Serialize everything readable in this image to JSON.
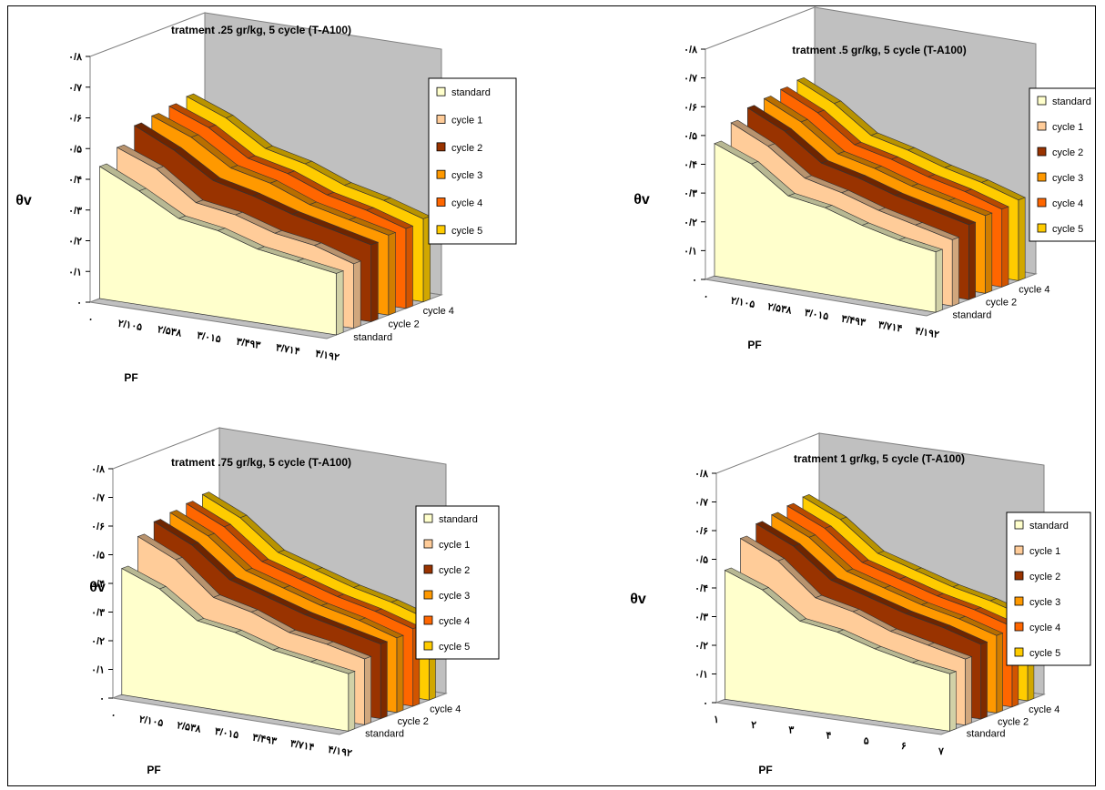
{
  "colors": {
    "standard": "#FFFFCC",
    "cycle 1": "#FFCC99",
    "cycle 2": "#993300",
    "cycle 3": "#FF9900",
    "cycle 4": "#FF6600",
    "cycle 5": "#FFCC00",
    "wall": "#C0C0C0"
  },
  "chart_data": [
    {
      "type": "area",
      "subtype": "3d-area",
      "title": "tratment .25 gr/kg, 5 cycle (T-A100)",
      "ylabel": "θv",
      "xlabel": "PF",
      "y_ticks": [
        "۰",
        "۰/۱",
        "۰/۲",
        "۰/۳",
        "۰/۴",
        "۰/۵",
        "۰/۶",
        "۰/۷",
        "۰/۸"
      ],
      "ylim": [
        0,
        0.8
      ],
      "categories": [
        "۰",
        "۲/۱۰۵",
        "۲/۵۳۸",
        "۳/۰۱۵",
        "۳/۴۹۳",
        "۳/۷۱۴",
        "۴/۱۹۲"
      ],
      "depth_labels": [
        "standard",
        "cycle 2",
        "cycle 4"
      ],
      "legend": [
        "standard",
        "cycle 1",
        "cycle 2",
        "cycle 3",
        "cycle 4",
        "cycle 5"
      ],
      "legend_position": "right",
      "series": [
        {
          "name": "standard",
          "values": [
            0.43,
            0.37,
            0.3,
            0.28,
            0.24,
            0.22,
            0.2
          ]
        },
        {
          "name": "cycle 1",
          "values": [
            0.47,
            0.42,
            0.33,
            0.31,
            0.27,
            0.25,
            0.21
          ]
        },
        {
          "name": "cycle 2",
          "values": [
            0.52,
            0.46,
            0.38,
            0.35,
            0.31,
            0.28,
            0.25
          ]
        },
        {
          "name": "cycle 3",
          "values": [
            0.53,
            0.48,
            0.4,
            0.37,
            0.32,
            0.29,
            0.26
          ]
        },
        {
          "name": "cycle 4",
          "values": [
            0.54,
            0.49,
            0.41,
            0.38,
            0.33,
            0.3,
            0.26
          ]
        },
        {
          "name": "cycle 5",
          "values": [
            0.55,
            0.5,
            0.42,
            0.39,
            0.34,
            0.31,
            0.27
          ]
        }
      ]
    },
    {
      "type": "area",
      "subtype": "3d-area",
      "title": "tratment .5 gr/kg, 5 cycle (T-A100)",
      "ylabel": "θv",
      "xlabel": "PF",
      "y_ticks": [
        "۰",
        "۰/۱",
        "۰/۲",
        "۰/۳",
        "۰/۴",
        "۰/۵",
        "۰/۶",
        "۰/۷",
        "۰/۸"
      ],
      "ylim": [
        0,
        0.8
      ],
      "categories": [
        "۰",
        "۲/۱۰۵",
        "۲/۵۳۸",
        "۳/۰۱۵",
        "۳/۴۹۳",
        "۳/۷۱۴",
        "۴/۱۹۲"
      ],
      "depth_labels": [
        "standard",
        "cycle 2",
        "cycle 4"
      ],
      "legend": [
        "standard",
        "cycle 1",
        "cycle 2",
        "cycle 3",
        "cycle 4",
        "cycle 5"
      ],
      "legend_position": "right",
      "series": [
        {
          "name": "standard",
          "values": [
            0.46,
            0.41,
            0.32,
            0.3,
            0.26,
            0.23,
            0.21
          ]
        },
        {
          "name": "cycle 1",
          "values": [
            0.51,
            0.45,
            0.36,
            0.33,
            0.29,
            0.26,
            0.23
          ]
        },
        {
          "name": "cycle 2",
          "values": [
            0.54,
            0.48,
            0.39,
            0.36,
            0.32,
            0.29,
            0.26
          ]
        },
        {
          "name": "cycle 3",
          "values": [
            0.55,
            0.49,
            0.4,
            0.37,
            0.33,
            0.3,
            0.27
          ]
        },
        {
          "name": "cycle 4",
          "values": [
            0.56,
            0.5,
            0.41,
            0.38,
            0.34,
            0.31,
            0.27
          ]
        },
        {
          "name": "cycle 5",
          "values": [
            0.57,
            0.51,
            0.42,
            0.39,
            0.35,
            0.32,
            0.28
          ]
        }
      ]
    },
    {
      "type": "area",
      "subtype": "3d-area",
      "title": "tratment .75 gr/kg, 5 cycle (T-A100)",
      "ylabel": "θv",
      "xlabel": "PF",
      "y_ticks": [
        "۰",
        "۰/۱",
        "۰/۲",
        "۰/۳",
        "۰/۴",
        "۰/۵",
        "۰/۶",
        "۰/۷",
        "۰/۸"
      ],
      "ylim": [
        0,
        0.8
      ],
      "categories": [
        "۰",
        "۲/۱۰۵",
        "۲/۵۳۸",
        "۳/۰۱۵",
        "۳/۴۹۳",
        "۳/۷۱۴",
        "۴/۱۹۲"
      ],
      "depth_labels": [
        "standard",
        "cycle 2",
        "cycle 4"
      ],
      "legend": [
        "standard",
        "cycle 1",
        "cycle 2",
        "cycle 3",
        "cycle 4",
        "cycle 5"
      ],
      "legend_position": "right",
      "series": [
        {
          "name": "standard",
          "values": [
            0.44,
            0.39,
            0.3,
            0.28,
            0.24,
            0.22,
            0.2
          ]
        },
        {
          "name": "cycle 1",
          "values": [
            0.53,
            0.47,
            0.36,
            0.33,
            0.28,
            0.26,
            0.23
          ]
        },
        {
          "name": "cycle 2",
          "values": [
            0.56,
            0.5,
            0.4,
            0.36,
            0.32,
            0.29,
            0.26
          ]
        },
        {
          "name": "cycle 3",
          "values": [
            0.57,
            0.51,
            0.41,
            0.37,
            0.33,
            0.3,
            0.26
          ]
        },
        {
          "name": "cycle 4",
          "values": [
            0.58,
            0.52,
            0.42,
            0.38,
            0.34,
            0.31,
            0.27
          ]
        },
        {
          "name": "cycle 5",
          "values": [
            0.59,
            0.53,
            0.43,
            0.39,
            0.35,
            0.32,
            0.28
          ]
        }
      ]
    },
    {
      "type": "area",
      "subtype": "3d-area",
      "title": "tratment 1 gr/kg, 5 cycle (T-A100)",
      "ylabel": "θv",
      "xlabel": "PF",
      "y_ticks": [
        "۰",
        "۰/۱",
        "۰/۲",
        "۰/۳",
        "۰/۴",
        "۰/۵",
        "۰/۶",
        "۰/۷",
        "۰/۸"
      ],
      "ylim": [
        0,
        0.8
      ],
      "categories": [
        "۱",
        "۲",
        "۳",
        "۴",
        "۵",
        "۶",
        "۷"
      ],
      "depth_labels": [
        "standard",
        "cycle 2",
        "cycle 4"
      ],
      "legend": [
        "standard",
        "cycle 1",
        "cycle 2",
        "cycle 3",
        "cycle 4",
        "cycle 5"
      ],
      "legend_position": "right",
      "series": [
        {
          "name": "standard",
          "values": [
            0.45,
            0.4,
            0.31,
            0.29,
            0.25,
            0.22,
            0.2
          ]
        },
        {
          "name": "cycle 1",
          "values": [
            0.54,
            0.48,
            0.37,
            0.34,
            0.29,
            0.26,
            0.23
          ]
        },
        {
          "name": "cycle 2",
          "values": [
            0.57,
            0.51,
            0.41,
            0.37,
            0.33,
            0.3,
            0.26
          ]
        },
        {
          "name": "cycle 3",
          "values": [
            0.58,
            0.52,
            0.42,
            0.38,
            0.34,
            0.31,
            0.27
          ]
        },
        {
          "name": "cycle 4",
          "values": [
            0.59,
            0.53,
            0.43,
            0.39,
            0.35,
            0.32,
            0.28
          ]
        },
        {
          "name": "cycle 5",
          "values": [
            0.6,
            0.54,
            0.44,
            0.4,
            0.36,
            0.33,
            0.29
          ]
        }
      ]
    }
  ]
}
